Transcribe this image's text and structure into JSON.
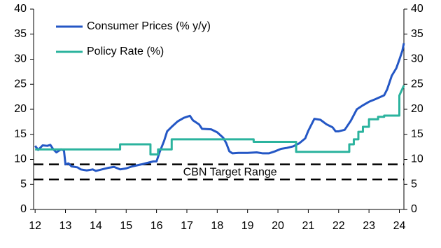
{
  "chart_data": {
    "type": "line",
    "xlim": [
      11.95,
      24.15
    ],
    "xticks": [
      12,
      13,
      14,
      15,
      16,
      17,
      18,
      19,
      20,
      21,
      22,
      23,
      24
    ],
    "ylim": [
      0,
      40
    ],
    "yticks": [
      0,
      5,
      10,
      15,
      20,
      25,
      30,
      35,
      40
    ],
    "y2lim": [
      0,
      40
    ],
    "y2ticks": [
      0,
      5,
      10,
      15,
      20,
      25,
      30,
      35,
      40
    ],
    "legend": "upper left",
    "series": [
      {
        "name": "Consumer Prices (% y/y)",
        "color": "#2457c5",
        "x": [
          12.0,
          12.1,
          12.25,
          12.4,
          12.5,
          12.6,
          12.7,
          12.85,
          12.95,
          13.0,
          13.1,
          13.2,
          13.4,
          13.5,
          13.7,
          13.9,
          14.0,
          14.2,
          14.4,
          14.6,
          14.8,
          15.0,
          15.2,
          15.5,
          15.7,
          15.9,
          16.0,
          16.1,
          16.25,
          16.35,
          16.5,
          16.7,
          16.9,
          17.1,
          17.2,
          17.4,
          17.5,
          17.8,
          18.0,
          18.2,
          18.3,
          18.4,
          18.5,
          18.7,
          19.0,
          19.3,
          19.5,
          19.7,
          19.9,
          20.1,
          20.3,
          20.5,
          20.7,
          20.9,
          21.0,
          21.2,
          21.4,
          21.6,
          21.8,
          21.9,
          22.0,
          22.2,
          22.4,
          22.6,
          22.8,
          23.0,
          23.2,
          23.5,
          23.6,
          23.75,
          23.9,
          24.0,
          24.1,
          24.15
        ],
        "values": [
          12.7,
          11.9,
          12.8,
          12.7,
          12.9,
          12.0,
          11.4,
          12.0,
          11.8,
          9.0,
          9.2,
          8.6,
          8.4,
          8.0,
          7.8,
          8.0,
          7.7,
          8.0,
          8.3,
          8.5,
          8.0,
          8.2,
          8.6,
          9.0,
          9.3,
          9.6,
          9.6,
          11.4,
          13.7,
          15.6,
          16.5,
          17.6,
          18.3,
          18.7,
          17.8,
          17.0,
          16.1,
          16.0,
          15.4,
          14.3,
          13.2,
          11.6,
          11.2,
          11.3,
          11.3,
          11.4,
          11.2,
          11.2,
          11.6,
          12.1,
          12.3,
          12.6,
          13.2,
          14.2,
          15.7,
          18.1,
          17.9,
          17.0,
          16.4,
          15.6,
          15.6,
          15.9,
          17.7,
          20.0,
          20.8,
          21.5,
          22.0,
          22.8,
          24.0,
          26.7,
          28.2,
          29.9,
          31.7,
          33.2
        ]
      },
      {
        "name": "Policy Rate (%)",
        "color": "#2bb39e",
        "x": [
          12.0,
          14.8,
          14.8,
          15.8,
          15.8,
          16.05,
          16.05,
          16.5,
          16.5,
          19.2,
          19.2,
          20.6,
          20.6,
          22.35,
          22.35,
          22.5,
          22.5,
          22.65,
          22.65,
          22.8,
          22.8,
          23.0,
          23.0,
          23.3,
          23.3,
          23.5,
          23.5,
          24.0,
          24.0,
          24.15
        ],
        "values": [
          12,
          12,
          13,
          13,
          11,
          11,
          12,
          12,
          14,
          14,
          13.5,
          13.5,
          11.5,
          11.5,
          13,
          13,
          14,
          14,
          15.5,
          15.5,
          16.5,
          16.5,
          18,
          18,
          18.5,
          18.5,
          18.75,
          18.75,
          22.75,
          24.75
        ]
      }
    ],
    "reference_lines": [
      {
        "value": 9
      },
      {
        "value": 6
      }
    ],
    "annotation": "CBN Target Range"
  }
}
